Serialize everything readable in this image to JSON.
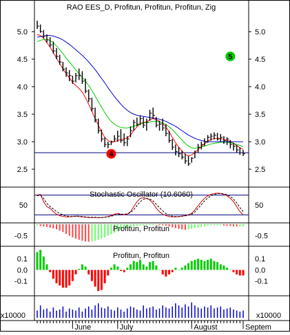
{
  "window": {
    "title": "RAO EES_D, Profitun, Profitun, Profitun, Zig"
  },
  "colors": {
    "background": "#ffffff",
    "price_bar": "#000000",
    "ma_fast": "#ff0000",
    "ma_mid": "#00cc00",
    "ma_slow": "#0000cc",
    "hline": "#000080",
    "hist_pos": "#00cc00",
    "hist_neg": "#ff0000",
    "hist_mid_pos": "#66ff66",
    "hist_mid_neg": "#ff4444",
    "stoch_main": "#cc0000",
    "stoch_signal": "#000000",
    "volume": "#0000cc",
    "marker_4": "#ff0000",
    "marker_5": "#00cc00"
  },
  "chart_data": [
    {
      "type": "line",
      "panel": "price",
      "title": "RAO EES_D, Profitun, Profitun, Profitun, Zig",
      "ylim": [
        2.2,
        5.35
      ],
      "yticks": [
        5.0,
        4.5,
        4.0,
        3.5,
        3.0,
        2.5
      ],
      "ytick_labels": [
        "5.0",
        "4.5",
        "4.0",
        "3.5",
        "3.0",
        "2.5"
      ],
      "hline": 2.8,
      "markers": [
        {
          "label": "4",
          "x": 23,
          "y": 2.78
        },
        {
          "label": "5",
          "x": 60,
          "y": 4.55
        }
      ],
      "bars": {
        "x": [
          0,
          1,
          2,
          3,
          4,
          5,
          6,
          7,
          8,
          9,
          10,
          11,
          12,
          13,
          14,
          15,
          16,
          17,
          18,
          19,
          20,
          21,
          22,
          23,
          24,
          25,
          26,
          27,
          28,
          29,
          30,
          31,
          32,
          33,
          34,
          35,
          36,
          37,
          38,
          39,
          40,
          41,
          42,
          43,
          44,
          45,
          46,
          47,
          48,
          49,
          50,
          51,
          52,
          53,
          54,
          55,
          56,
          57,
          58,
          59,
          60,
          61,
          62,
          63,
          64
        ],
        "high": [
          5.2,
          5.13,
          5.03,
          4.95,
          4.9,
          4.82,
          4.7,
          4.58,
          4.45,
          4.35,
          4.3,
          4.2,
          4.25,
          4.33,
          4.28,
          4.15,
          3.95,
          3.8,
          3.62,
          3.42,
          3.22,
          3.08,
          3.0,
          3.02,
          3.12,
          3.2,
          3.23,
          3.15,
          3.1,
          3.28,
          3.4,
          3.44,
          3.48,
          3.45,
          3.42,
          3.58,
          3.62,
          3.45,
          3.38,
          3.42,
          3.32,
          3.2,
          3.05,
          2.95,
          2.9,
          2.84,
          2.78,
          2.74,
          2.72,
          2.84,
          2.96,
          3.0,
          3.06,
          3.12,
          3.15,
          3.17,
          3.16,
          3.14,
          3.1,
          3.08,
          3.03,
          2.98,
          2.94,
          2.9,
          2.85
        ],
        "low": [
          5.05,
          4.98,
          4.88,
          4.8,
          4.72,
          4.6,
          4.5,
          4.4,
          4.28,
          4.18,
          4.1,
          4.05,
          4.08,
          4.12,
          4.05,
          3.88,
          3.72,
          3.55,
          3.35,
          3.15,
          3.0,
          2.9,
          2.88,
          2.94,
          3.0,
          3.0,
          2.98,
          2.92,
          2.92,
          3.08,
          3.2,
          3.28,
          3.3,
          3.25,
          3.2,
          3.38,
          3.42,
          3.26,
          3.2,
          3.2,
          3.1,
          2.98,
          2.85,
          2.75,
          2.72,
          2.68,
          2.6,
          2.56,
          2.62,
          2.7,
          2.8,
          2.86,
          2.92,
          2.98,
          3.02,
          3.04,
          3.02,
          3.0,
          2.96,
          2.94,
          2.88,
          2.84,
          2.8,
          2.76,
          2.74
        ],
        "close": [
          5.1,
          5.0,
          4.92,
          4.85,
          4.76,
          4.65,
          4.55,
          4.45,
          4.32,
          4.25,
          4.2,
          4.1,
          4.2,
          4.2,
          4.1,
          3.92,
          3.78,
          3.6,
          3.4,
          3.2,
          3.05,
          2.95,
          2.95,
          3.0,
          3.05,
          3.1,
          3.02,
          2.98,
          3.05,
          3.2,
          3.35,
          3.32,
          3.42,
          3.3,
          3.35,
          3.52,
          3.48,
          3.3,
          3.32,
          3.25,
          3.15,
          3.02,
          2.9,
          2.82,
          2.78,
          2.72,
          2.65,
          2.6,
          2.7,
          2.8,
          2.9,
          2.95,
          3.0,
          3.08,
          3.1,
          3.12,
          3.05,
          3.08,
          3.02,
          3.05,
          2.95,
          2.92,
          2.85,
          2.8,
          2.78
        ]
      },
      "series": [
        {
          "name": "Profitun",
          "color": "#ff0000",
          "values": [
            4.95,
            4.93,
            4.88,
            4.8,
            4.72,
            4.62,
            4.52,
            4.42,
            4.32,
            4.24,
            4.16,
            4.08,
            4.02,
            3.97,
            3.9,
            3.8,
            3.68,
            3.55,
            3.42,
            3.3,
            3.18,
            3.08,
            3.02,
            2.99,
            3.0,
            3.02,
            3.04,
            3.05,
            3.07,
            3.12,
            3.2,
            3.27,
            3.33,
            3.35,
            3.36,
            3.4,
            3.42,
            3.4,
            3.37,
            3.33,
            3.27,
            3.18,
            3.08,
            2.98,
            2.9,
            2.83,
            2.77,
            2.74,
            2.76,
            2.8,
            2.86,
            2.91,
            2.96,
            3.01,
            3.04,
            3.06,
            3.06,
            3.06,
            3.04,
            3.03,
            3.0,
            2.97,
            2.93,
            2.89,
            2.86
          ]
        },
        {
          "name": "Profitun",
          "color": "#00cc00",
          "values": [
            4.82,
            4.84,
            4.86,
            4.86,
            4.84,
            4.8,
            4.74,
            4.67,
            4.6,
            4.52,
            4.45,
            4.38,
            4.3,
            4.24,
            4.17,
            4.1,
            4.02,
            3.93,
            3.83,
            3.73,
            3.63,
            3.53,
            3.44,
            3.37,
            3.32,
            3.28,
            3.26,
            3.25,
            3.25,
            3.26,
            3.28,
            3.3,
            3.32,
            3.34,
            3.35,
            3.36,
            3.37,
            3.37,
            3.36,
            3.34,
            3.31,
            3.27,
            3.22,
            3.16,
            3.09,
            3.03,
            2.97,
            2.92,
            2.89,
            2.88,
            2.89,
            2.9,
            2.92,
            2.94,
            2.96,
            2.97,
            2.98,
            2.99,
            2.99,
            2.99,
            2.98,
            2.97,
            2.95,
            2.93,
            2.91
          ]
        },
        {
          "name": "Profitun",
          "color": "#0000cc",
          "values": [
            4.9,
            4.91,
            4.92,
            4.93,
            4.93,
            4.92,
            4.9,
            4.88,
            4.85,
            4.81,
            4.77,
            4.72,
            4.67,
            4.62,
            4.57,
            4.51,
            4.45,
            4.38,
            4.31,
            4.23,
            4.15,
            4.07,
            3.98,
            3.9,
            3.82,
            3.75,
            3.68,
            3.62,
            3.57,
            3.53,
            3.5,
            3.48,
            3.47,
            3.46,
            3.45,
            3.44,
            3.43,
            3.42,
            3.41,
            3.39,
            3.37,
            3.34,
            3.31,
            3.28,
            3.24,
            3.2,
            3.16,
            3.12,
            3.09,
            3.06,
            3.04,
            3.02,
            3.01,
            3.0,
            3.0,
            3.0,
            3.0,
            3.0,
            3.0,
            3.0,
            3.0,
            3.0,
            3.0,
            3.0,
            3.0
          ]
        }
      ]
    },
    {
      "type": "line",
      "panel": "stochastic",
      "title": "Stochastic Oscillator (10.6060)",
      "ylim": [
        0,
        100
      ],
      "yticks": [
        50
      ],
      "ytick_labels": [
        "50"
      ],
      "hlines": [
        80,
        20
      ],
      "series": [
        {
          "name": "",
          "color": "#cc0000",
          "values": [
            80,
            82,
            60,
            45,
            40,
            30,
            22,
            18,
            15,
            14,
            14,
            15,
            16,
            15,
            14,
            13,
            12,
            12,
            12,
            12,
            12,
            13,
            15,
            18,
            22,
            25,
            22,
            20,
            22,
            30,
            45,
            60,
            70,
            72,
            70,
            65,
            55,
            40,
            30,
            22,
            18,
            15,
            14,
            14,
            15,
            16,
            18,
            20,
            25,
            35,
            48,
            60,
            70,
            78,
            82,
            85,
            86,
            85,
            82,
            78,
            70,
            60,
            45,
            30,
            20
          ]
        },
        {
          "name": "",
          "color": "#000000",
          "values": [
            78,
            80,
            70,
            55,
            45,
            38,
            30,
            24,
            20,
            17,
            15,
            15,
            16,
            16,
            15,
            14,
            13,
            13,
            13,
            12,
            12,
            13,
            14,
            16,
            19,
            22,
            22,
            22,
            23,
            27,
            36,
            48,
            60,
            67,
            70,
            68,
            62,
            52,
            42,
            32,
            24,
            19,
            16,
            15,
            15,
            16,
            17,
            19,
            22,
            29,
            40,
            51,
            62,
            71,
            78,
            82,
            84,
            85,
            84,
            81,
            76,
            68,
            56,
            42,
            30
          ]
        }
      ]
    },
    {
      "type": "bar",
      "panel": "histogram",
      "title": "Profitun, Profitun",
      "ylim": [
        -0.9,
        0.0
      ],
      "yticks": [
        -0.5
      ],
      "ytick_labels": [
        "-0.5"
      ],
      "values": [
        -0.05,
        -0.08,
        -0.1,
        -0.12,
        -0.15,
        -0.18,
        -0.22,
        -0.28,
        -0.34,
        -0.42,
        -0.5,
        -0.57,
        -0.63,
        -0.68,
        -0.72,
        -0.75,
        -0.76,
        -0.75,
        -0.72,
        -0.68,
        -0.63,
        -0.57,
        -0.5,
        -0.44,
        -0.37,
        -0.3,
        -0.25,
        -0.2,
        -0.16,
        -0.13,
        -0.1,
        -0.08,
        -0.06,
        -0.05,
        -0.04,
        -0.04,
        -0.03,
        -0.03,
        -0.04,
        -0.05,
        -0.07,
        -0.1,
        -0.14,
        -0.17,
        -0.2,
        -0.22,
        -0.24,
        -0.22,
        -0.2,
        -0.17,
        -0.14,
        -0.11,
        -0.09,
        -0.07,
        -0.06,
        -0.05,
        -0.05,
        -0.05,
        -0.06,
        -0.07,
        -0.08,
        -0.09,
        -0.1,
        -0.1,
        -0.1
      ]
    },
    {
      "type": "bar",
      "panel": "oscillator",
      "title": "Profitun, Profitun",
      "ylim": [
        -0.22,
        0.2
      ],
      "yticks": [
        0.1,
        0.0,
        -0.1
      ],
      "ytick_labels": [
        "0.1",
        "0.0",
        "-0.1"
      ],
      "values": [
        0.16,
        0.18,
        0.12,
        0.05,
        -0.02,
        -0.08,
        -0.12,
        -0.14,
        -0.16,
        -0.16,
        -0.14,
        -0.1,
        -0.04,
        0.01,
        0.05,
        0.03,
        -0.04,
        -0.1,
        -0.15,
        -0.19,
        -0.18,
        -0.12,
        -0.05,
        0.02,
        0.05,
        0.03,
        -0.01,
        -0.02,
        0.02,
        0.05,
        0.08,
        0.07,
        0.09,
        0.05,
        0.03,
        0.07,
        0.08,
        0.04,
        0.0,
        -0.04,
        -0.06,
        -0.04,
        -0.02,
        0.02,
        0.0,
        0.02,
        0.04,
        0.06,
        0.08,
        0.09,
        0.1,
        0.09,
        0.08,
        0.09,
        0.1,
        0.08,
        0.07,
        0.05,
        0.04,
        0.02,
        0.0,
        -0.02,
        -0.04,
        -0.05,
        -0.05
      ]
    },
    {
      "type": "bar",
      "panel": "volume",
      "title": "",
      "ylim": [
        0,
        1
      ],
      "yticks": [
        0
      ],
      "ytick_labels": [
        "x10000"
      ],
      "xtick_labels": [
        "June",
        "July",
        "August",
        "Septem"
      ],
      "xtick_positions": [
        11,
        25,
        48,
        64
      ],
      "values": [
        0.35,
        0.6,
        0.4,
        0.45,
        0.3,
        0.5,
        0.35,
        0.4,
        0.55,
        0.3,
        0.45,
        0.4,
        0.35,
        0.5,
        0.3,
        0.45,
        0.55,
        0.4,
        0.6,
        0.7,
        0.5,
        0.45,
        0.55,
        0.4,
        0.35,
        0.5,
        0.4,
        0.3,
        0.45,
        0.55,
        0.5,
        0.4,
        0.35,
        0.6,
        0.45,
        0.5,
        0.55,
        0.4,
        0.45,
        0.6,
        0.5,
        0.45,
        0.55,
        0.7,
        0.6,
        0.5,
        0.65,
        0.55,
        0.75,
        0.6,
        0.5,
        0.45,
        0.55,
        0.5,
        0.6,
        0.45,
        0.5,
        0.55,
        0.4,
        0.45,
        0.5,
        0.4,
        0.35,
        0.3,
        0.35
      ]
    }
  ]
}
